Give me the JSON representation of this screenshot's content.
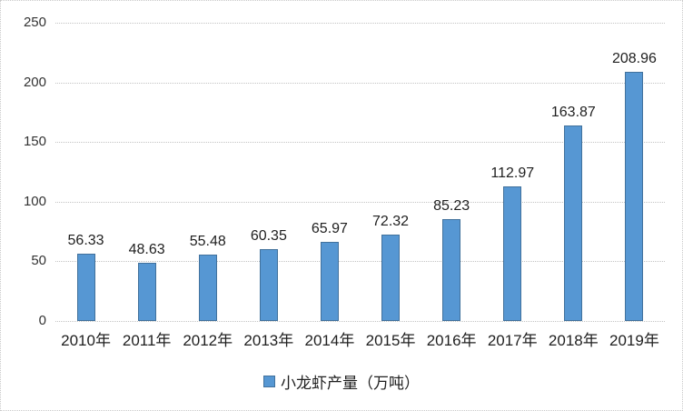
{
  "chart_data": {
    "type": "bar",
    "title": "",
    "categories": [
      "2010年",
      "2011年",
      "2012年",
      "2013年",
      "2014年",
      "2015年",
      "2016年",
      "2017年",
      "2018年",
      "2019年"
    ],
    "series": [
      {
        "name": "小龙虾产量（万吨）",
        "values": [
          56.33,
          48.63,
          55.48,
          60.35,
          65.97,
          72.32,
          85.23,
          112.97,
          163.87,
          208.96
        ],
        "data_labels": [
          "56.33",
          "48.63",
          "55.48",
          "60.35",
          "65.97",
          "72.32",
          "85.23",
          "112.97",
          "163.87",
          "208.96"
        ]
      }
    ],
    "xlabel": "",
    "ylabel": "",
    "ylim": [
      0,
      250
    ],
    "yticks": [
      0,
      50,
      100,
      150,
      200,
      250
    ],
    "grid": true,
    "gridline_style": "dotted",
    "legend_position": "bottom",
    "legend_label": "小龙虾产量（万吨）",
    "colors": {
      "bar_fill": "#5697d3",
      "bar_border": "#41719c",
      "gridline": "#c3c3c3",
      "canvas_border": "#c9c9c9",
      "text": "#1f1f1f"
    }
  }
}
